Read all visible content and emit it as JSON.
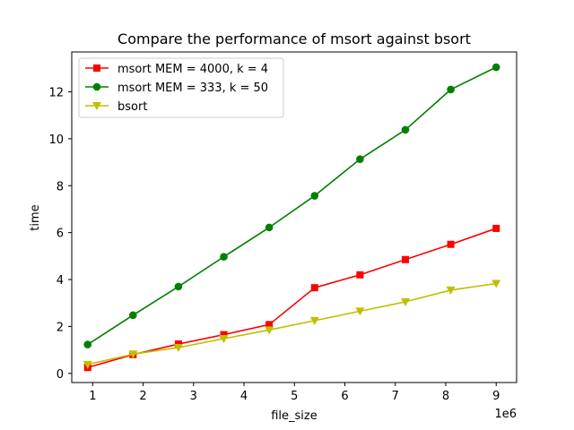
{
  "chart_data": {
    "type": "line",
    "title": "Compare the performance of msort against bsort",
    "xlabel": "file_size",
    "ylabel": "time",
    "x_offset_label": "1e6",
    "xlim": [
      0.585,
      9.405
    ],
    "ylim": [
      -0.39,
      13.7
    ],
    "x_ticks": [
      1,
      2,
      3,
      4,
      5,
      6,
      7,
      8,
      9
    ],
    "y_ticks": [
      0,
      2,
      4,
      6,
      8,
      10,
      12
    ],
    "x": [
      0.9,
      1.8,
      2.7,
      3.6,
      4.5,
      5.4,
      6.3,
      7.2,
      8.1,
      9.0
    ],
    "grid": false,
    "legend_position": "upper left",
    "series": [
      {
        "name": "msort MEM = 4000, k = 4",
        "color": "#ff0000",
        "marker": "square",
        "values": [
          0.25,
          0.8,
          1.25,
          1.65,
          2.08,
          3.65,
          4.2,
          4.85,
          5.5,
          6.18
        ]
      },
      {
        "name": "msort MEM = 333, k = 50",
        "color": "#008000",
        "marker": "circle",
        "values": [
          1.23,
          2.48,
          3.7,
          4.97,
          6.22,
          7.57,
          9.13,
          10.38,
          12.1,
          13.05
        ]
      },
      {
        "name": "bsort",
        "color": "#bfbf00",
        "marker": "triangle-down",
        "values": [
          0.38,
          0.82,
          1.1,
          1.48,
          1.85,
          2.25,
          2.65,
          3.05,
          3.55,
          3.83
        ]
      }
    ]
  }
}
